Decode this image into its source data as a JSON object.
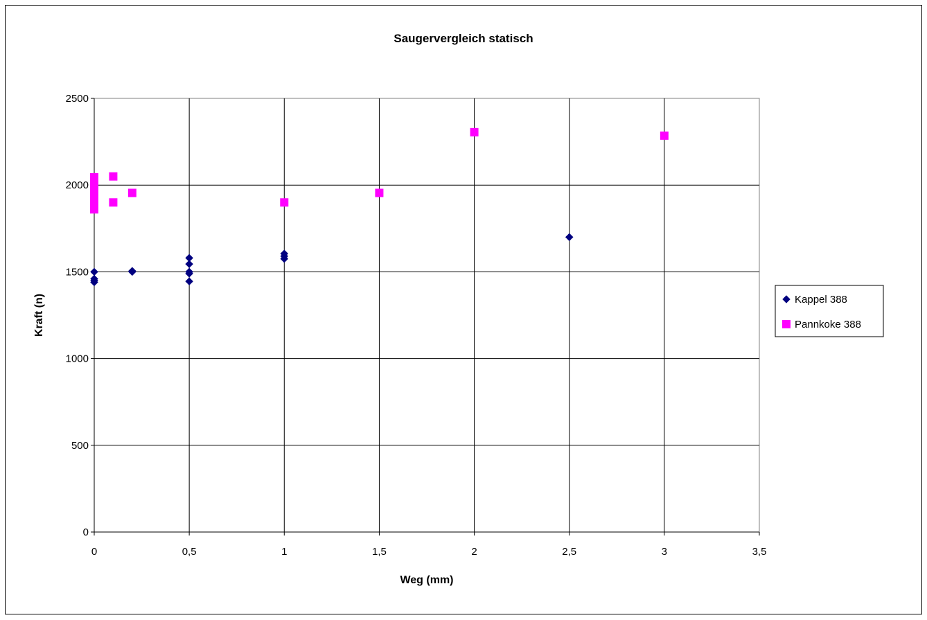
{
  "chart_data": {
    "type": "scatter",
    "title": "Saugervergleich statisch",
    "xlabel": "Weg (mm)",
    "ylabel": "Kraft (n)",
    "xlim": [
      0,
      3.5
    ],
    "ylim": [
      0,
      2500
    ],
    "xticks": [
      0,
      0.5,
      1,
      1.5,
      2,
      2.5,
      3,
      3.5
    ],
    "xtick_labels": [
      "0",
      "0,5",
      "1",
      "1,5",
      "2",
      "2,5",
      "3",
      "3,5"
    ],
    "yticks": [
      0,
      500,
      1000,
      1500,
      2000,
      2500
    ],
    "ytick_labels": [
      "0",
      "500",
      "1000",
      "1500",
      "2000",
      "2500"
    ],
    "grid": true,
    "legend_position": "right",
    "series": [
      {
        "name": "Kappel 388",
        "marker": "diamond",
        "color": "#000080",
        "points": [
          {
            "x": 0,
            "y": 1500
          },
          {
            "x": 0,
            "y": 1460
          },
          {
            "x": 0,
            "y": 1450
          },
          {
            "x": 0,
            "y": 1440
          },
          {
            "x": 0.2,
            "y": 1500
          },
          {
            "x": 0.2,
            "y": 1505
          },
          {
            "x": 0.5,
            "y": 1580
          },
          {
            "x": 0.5,
            "y": 1545
          },
          {
            "x": 0.5,
            "y": 1500
          },
          {
            "x": 0.5,
            "y": 1490
          },
          {
            "x": 0.5,
            "y": 1445
          },
          {
            "x": 1,
            "y": 1605
          },
          {
            "x": 1,
            "y": 1590
          },
          {
            "x": 1,
            "y": 1575
          },
          {
            "x": 2.5,
            "y": 1700
          }
        ]
      },
      {
        "name": "Pannkoke 388",
        "marker": "square",
        "color": "#FF00FF",
        "points": [
          {
            "x": 0,
            "y": 2045
          },
          {
            "x": 0,
            "y": 2020
          },
          {
            "x": 0,
            "y": 2000
          },
          {
            "x": 0,
            "y": 1980
          },
          {
            "x": 0,
            "y": 1960
          },
          {
            "x": 0,
            "y": 1940
          },
          {
            "x": 0,
            "y": 1920
          },
          {
            "x": 0,
            "y": 1900
          },
          {
            "x": 0,
            "y": 1880
          },
          {
            "x": 0,
            "y": 1860
          },
          {
            "x": 0.1,
            "y": 2050
          },
          {
            "x": 0.1,
            "y": 1900
          },
          {
            "x": 0.2,
            "y": 1955
          },
          {
            "x": 1,
            "y": 1900
          },
          {
            "x": 1.5,
            "y": 1955
          },
          {
            "x": 2,
            "y": 2305
          },
          {
            "x": 3,
            "y": 2285
          }
        ]
      }
    ]
  }
}
